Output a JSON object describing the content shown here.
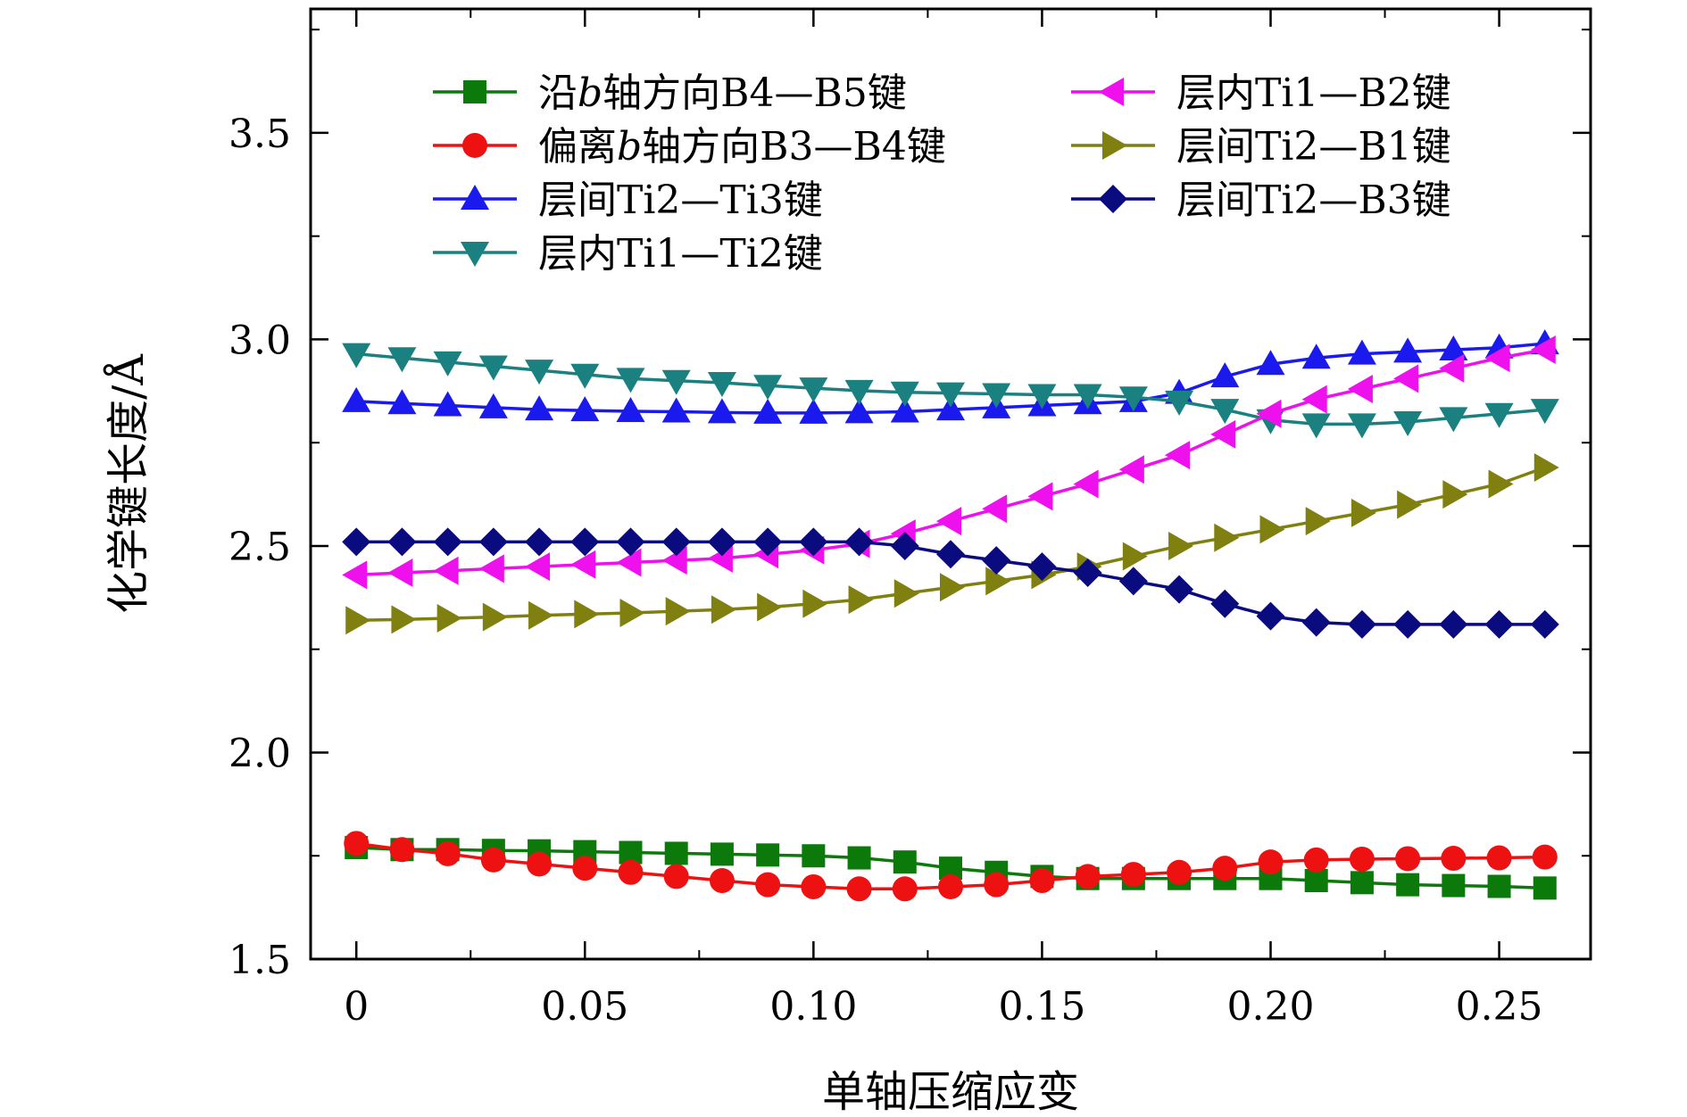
{
  "chart_data": {
    "type": "line",
    "xlabel": "单轴压缩应变",
    "ylabel": "化学键长度/Å",
    "xlim": [
      -0.01,
      0.27
    ],
    "ylim": [
      1.5,
      3.8
    ],
    "x_ticks": [
      0,
      0.05,
      0.1,
      0.15,
      0.2,
      0.25
    ],
    "x_tick_labels": [
      "0",
      "0.05",
      "0.10",
      "0.15",
      "0.20",
      "0.25"
    ],
    "y_ticks": [
      1.5,
      2.0,
      2.5,
      3.0,
      3.5
    ],
    "y_tick_labels": [
      "1.5",
      "2.0",
      "2.5",
      "3.0",
      "3.5"
    ],
    "legend_position": "top",
    "x": [
      0,
      0.01,
      0.02,
      0.03,
      0.04,
      0.05,
      0.06,
      0.07,
      0.08,
      0.09,
      0.1,
      0.11,
      0.12,
      0.13,
      0.14,
      0.15,
      0.16,
      0.17,
      0.18,
      0.19,
      0.2,
      0.21,
      0.22,
      0.23,
      0.24,
      0.25,
      0.26
    ],
    "series": [
      {
        "name": "沿b轴方向B4—B5键",
        "legend_label": {
          "pre": "沿",
          "italic": "b",
          "post": "轴方向B4—B5键"
        },
        "color": "#0b7a0b",
        "marker": "square",
        "values": [
          1.77,
          1.765,
          1.765,
          1.763,
          1.762,
          1.76,
          1.758,
          1.756,
          1.754,
          1.752,
          1.75,
          1.745,
          1.735,
          1.72,
          1.71,
          1.7,
          1.695,
          1.695,
          1.695,
          1.695,
          1.695,
          1.69,
          1.685,
          1.68,
          1.678,
          1.676,
          1.672
        ]
      },
      {
        "name": "偏离b轴方向B3—B4键",
        "legend_label": {
          "pre": "偏离",
          "italic": "b",
          "post": "轴方向B3—B4键"
        },
        "color": "#ee1111",
        "marker": "circle",
        "values": [
          1.78,
          1.765,
          1.755,
          1.74,
          1.73,
          1.72,
          1.71,
          1.7,
          1.69,
          1.68,
          1.675,
          1.67,
          1.67,
          1.675,
          1.68,
          1.69,
          1.7,
          1.705,
          1.71,
          1.72,
          1.735,
          1.74,
          1.742,
          1.743,
          1.744,
          1.745,
          1.747
        ]
      },
      {
        "name": "层间Ti2—Ti3键",
        "legend_label": {
          "pre": "层间Ti2—Ti3键",
          "italic": "",
          "post": ""
        },
        "color": "#1a1aee",
        "marker": "triangle-up",
        "values": [
          2.85,
          2.845,
          2.84,
          2.835,
          2.83,
          2.828,
          2.826,
          2.825,
          2.823,
          2.822,
          2.822,
          2.823,
          2.825,
          2.83,
          2.835,
          2.84,
          2.845,
          2.85,
          2.87,
          2.91,
          2.94,
          2.955,
          2.965,
          2.97,
          2.975,
          2.98,
          2.99
        ]
      },
      {
        "name": "层内Ti1—Ti2键",
        "legend_label": {
          "pre": "层内Ti1—Ti2键",
          "italic": "",
          "post": ""
        },
        "color": "#1a8080",
        "marker": "triangle-down",
        "values": [
          2.965,
          2.955,
          2.945,
          2.935,
          2.925,
          2.915,
          2.905,
          2.9,
          2.895,
          2.888,
          2.882,
          2.876,
          2.872,
          2.87,
          2.868,
          2.866,
          2.866,
          2.86,
          2.85,
          2.83,
          2.805,
          2.795,
          2.795,
          2.8,
          2.81,
          2.82,
          2.83
        ]
      },
      {
        "name": "层内Ti1—B2键",
        "legend_label": {
          "pre": "层内Ti1—B2键",
          "italic": "",
          "post": ""
        },
        "color": "#ee11ee",
        "marker": "triangle-left",
        "values": [
          2.43,
          2.435,
          2.44,
          2.445,
          2.45,
          2.455,
          2.46,
          2.465,
          2.47,
          2.48,
          2.49,
          2.505,
          2.53,
          2.56,
          2.59,
          2.62,
          2.65,
          2.685,
          2.72,
          2.77,
          2.82,
          2.855,
          2.88,
          2.905,
          2.93,
          2.955,
          2.975
        ]
      },
      {
        "name": "层间Ti2—B1键",
        "legend_label": {
          "pre": "层间Ti2—B1键",
          "italic": "",
          "post": ""
        },
        "color": "#808010",
        "marker": "triangle-right",
        "values": [
          2.32,
          2.322,
          2.325,
          2.328,
          2.332,
          2.335,
          2.338,
          2.342,
          2.346,
          2.352,
          2.36,
          2.37,
          2.385,
          2.4,
          2.415,
          2.43,
          2.45,
          2.475,
          2.5,
          2.52,
          2.54,
          2.56,
          2.58,
          2.6,
          2.625,
          2.65,
          2.69
        ]
      },
      {
        "name": "层间Ti2—B3键",
        "legend_label": {
          "pre": "层间Ti2—B3键",
          "italic": "",
          "post": ""
        },
        "color": "#0b0b80",
        "marker": "diamond",
        "values": [
          2.51,
          2.51,
          2.51,
          2.51,
          2.51,
          2.51,
          2.51,
          2.51,
          2.51,
          2.51,
          2.51,
          2.51,
          2.5,
          2.48,
          2.465,
          2.45,
          2.435,
          2.415,
          2.395,
          2.36,
          2.33,
          2.315,
          2.31,
          2.31,
          2.31,
          2.31,
          2.31
        ]
      }
    ]
  }
}
